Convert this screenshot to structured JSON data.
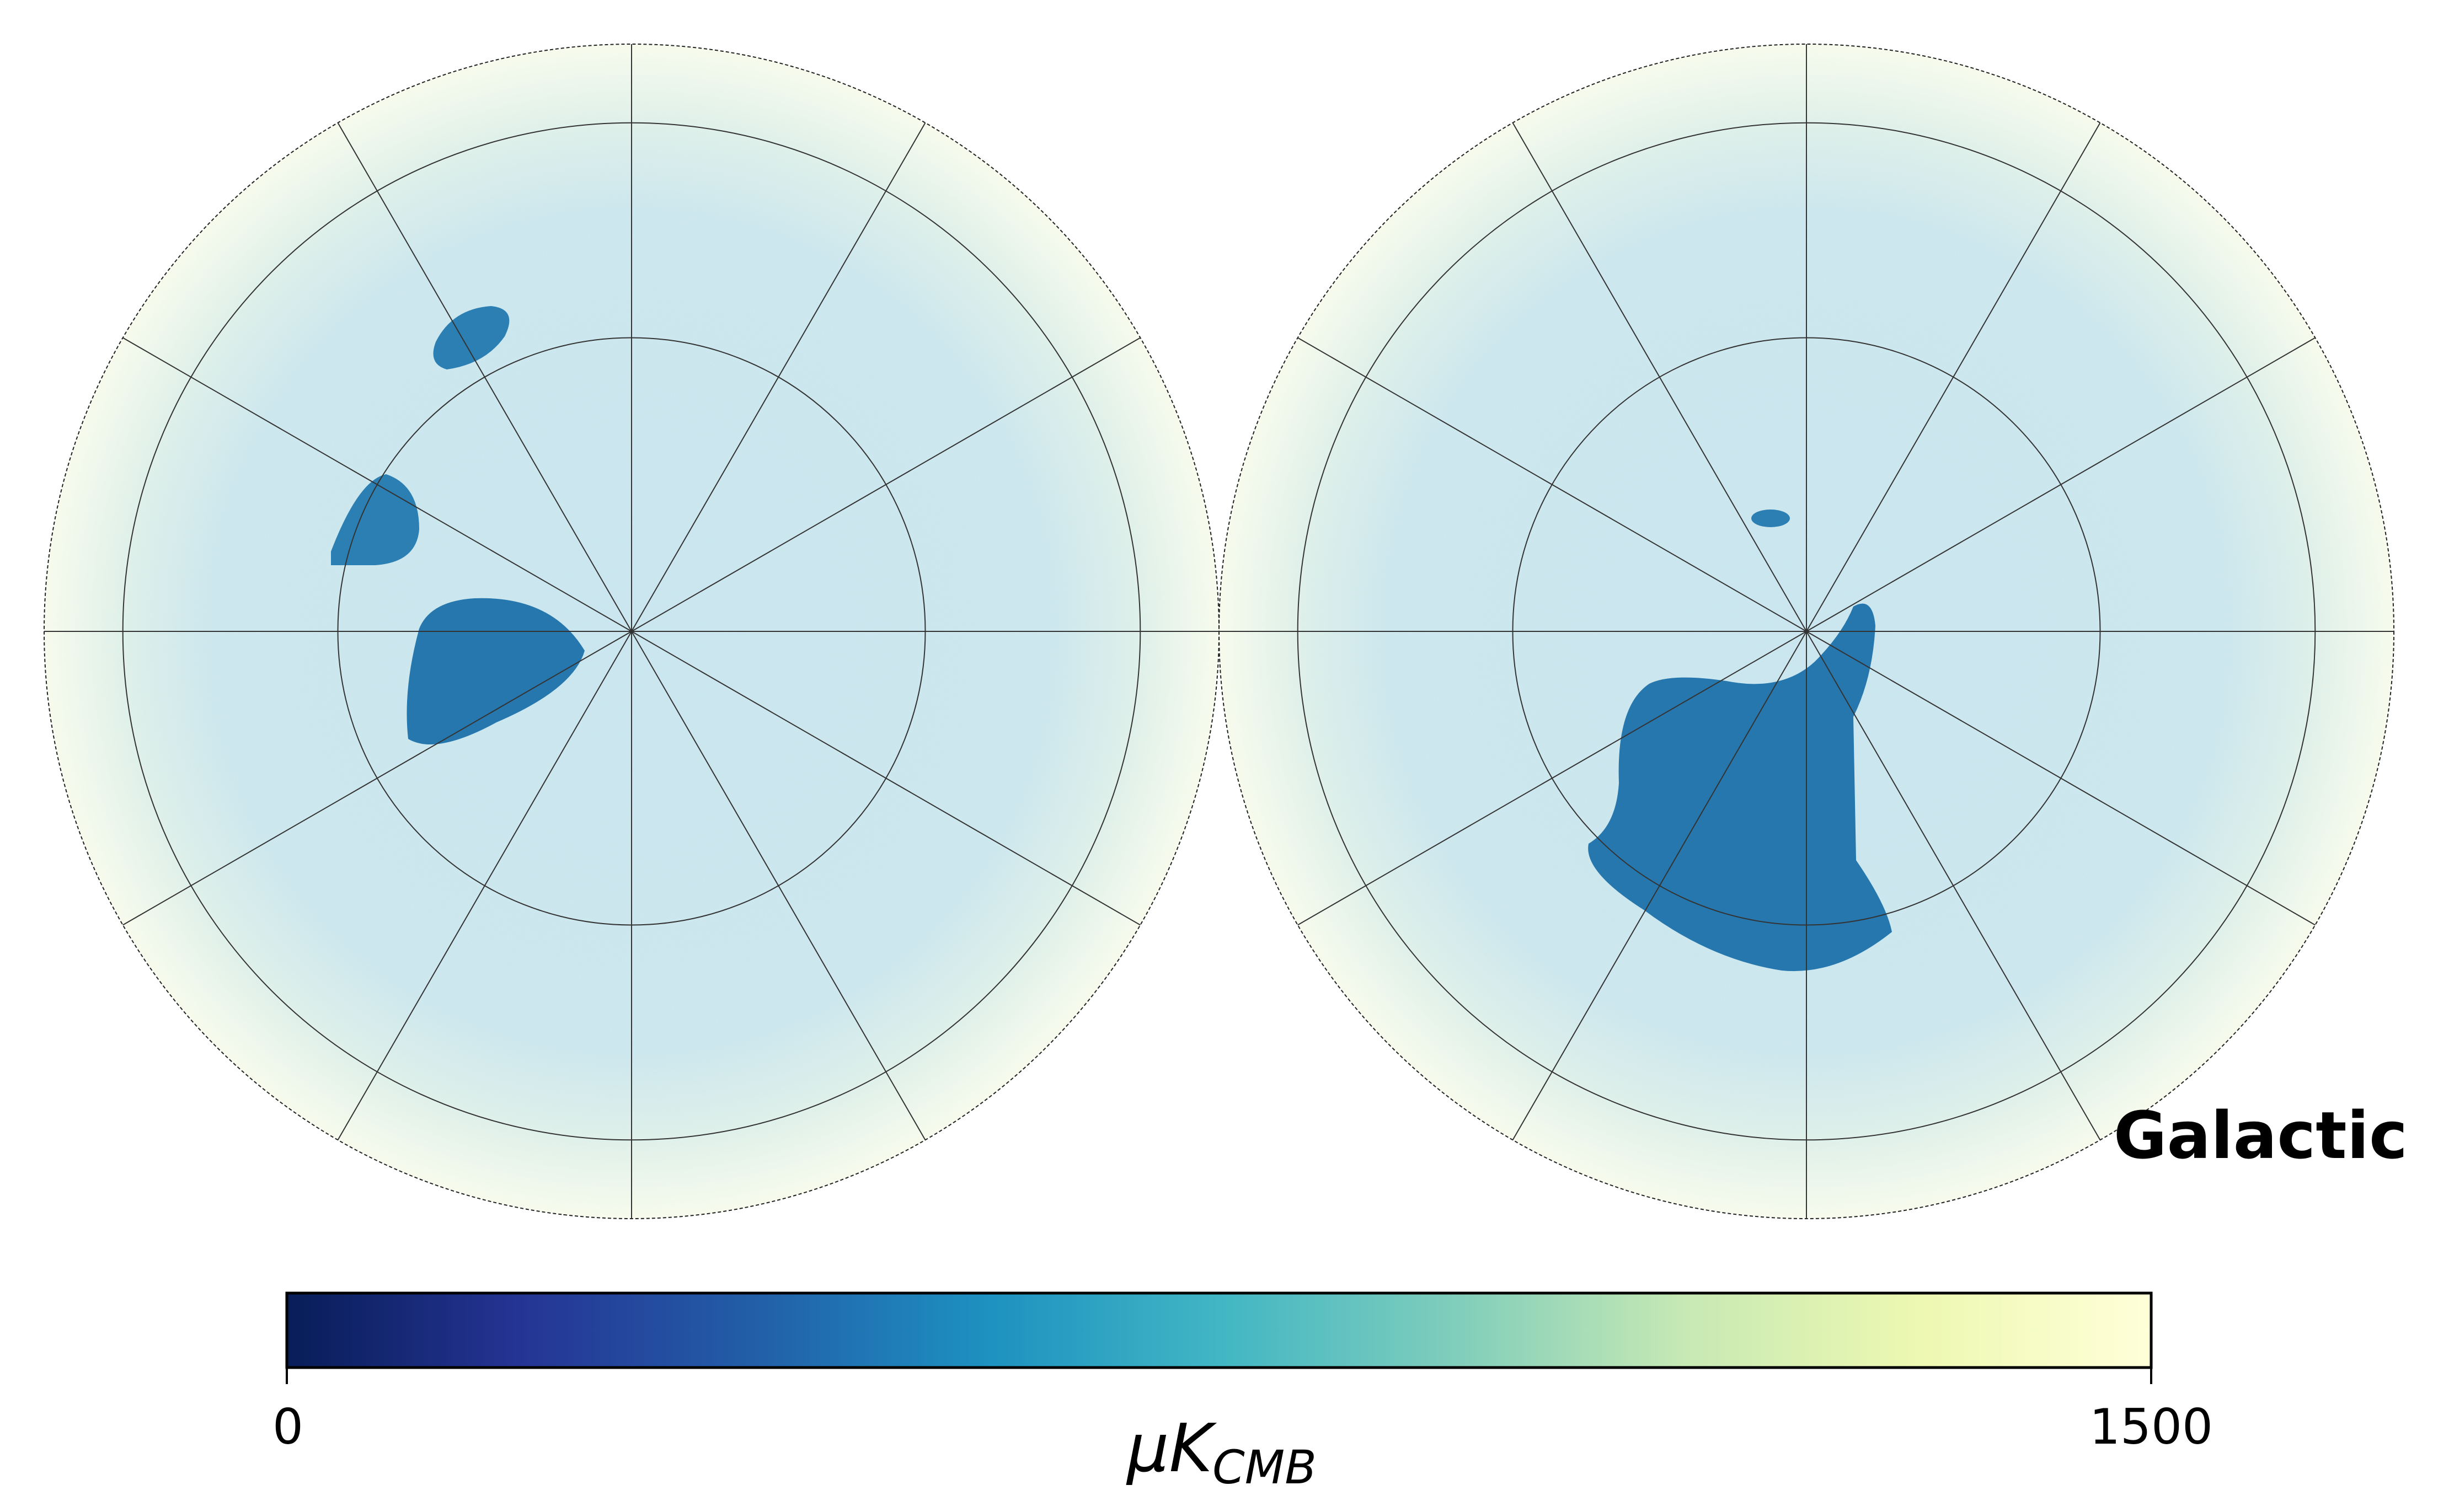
{
  "chart_data": {
    "type": "heatmap",
    "projection": "orthographic",
    "hemispheres": 2,
    "coordinate_system": "Galactic",
    "colorbar": {
      "colormap": "YlGnBu_r",
      "min": 0,
      "max": 1500,
      "ticks": [
        "0",
        "1500"
      ],
      "unit": "μK",
      "unit_subscript": "CMB",
      "stops": [
        "#081d58",
        "#253494",
        "#225ea8",
        "#1d91c0",
        "#41b6c4",
        "#7fcdbb",
        "#c7e9b4",
        "#edf8b1",
        "#ffffd9"
      ]
    },
    "graticule": true,
    "background_level_color": "#c5e3ea",
    "masked_region_color": "#2b7fb3",
    "edge_color": "#fbfdec"
  }
}
